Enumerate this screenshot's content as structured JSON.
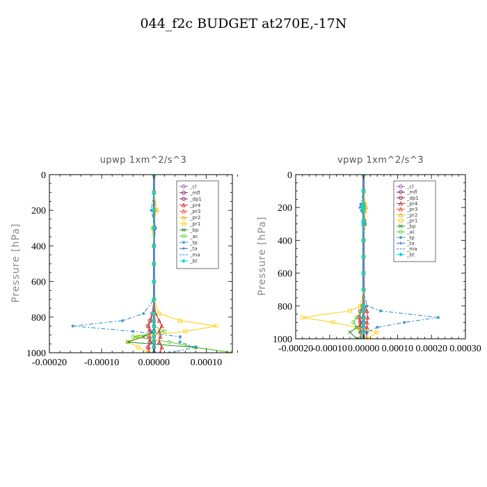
{
  "figure": {
    "title": "044_f2c  BUDGET at270E,-17N"
  },
  "chart_data": [
    {
      "type": "line",
      "title": "upwp   1xm^2/s^3",
      "ylabel": "Pressure [hPa]",
      "xlabel": "",
      "xlim": [
        -0.0002,
        0.00015
      ],
      "ylim": [
        1000,
        0
      ],
      "x_ticks": [
        -0.0002,
        -0.0001,
        0.0,
        0.0001
      ],
      "x_tick_labels": [
        "-0.00020",
        "-0.00010",
        "0.00000",
        "0.00010"
      ],
      "y_ticks": [
        0,
        200,
        400,
        600,
        800,
        1000
      ],
      "y_tick_labels": [
        "0",
        "200",
        "400",
        "600",
        "800",
        "1000"
      ],
      "legend_position": "top-right",
      "y": [
        0,
        100,
        200,
        300,
        400,
        500,
        600,
        700,
        780,
        820,
        850,
        880,
        910,
        940,
        970,
        1000
      ],
      "series": [
        {
          "name": "_cl",
          "color": "#8e5aa8",
          "marker": "circle",
          "dash": "",
          "x": [
            0,
            0,
            0,
            0,
            0,
            0,
            0,
            0,
            0,
            0,
            0,
            0,
            0,
            0,
            0,
            0
          ]
        },
        {
          "name": "_mfl",
          "color": "#7a1f6e",
          "marker": "circle",
          "dash": "",
          "x": [
            0,
            0,
            0,
            0,
            0,
            0,
            0,
            0,
            0,
            0,
            0,
            0,
            0,
            0,
            0,
            0
          ]
        },
        {
          "name": "_dp1",
          "color": "#8b2252",
          "marker": "circle",
          "dash": "",
          "x": [
            0,
            0,
            0,
            0,
            0,
            0,
            0,
            0,
            -3e-06,
            -8e-06,
            -1.2e-05,
            -8e-06,
            -1e-05,
            -8e-06,
            -1.2e-05,
            -1e-05
          ]
        },
        {
          "name": "_pr4",
          "color": "#d62b2b",
          "marker": "triangle",
          "dash": "",
          "x": [
            0,
            0,
            0,
            0,
            0,
            0,
            0,
            0,
            3e-06,
            1e-05,
            1.5e-05,
            1e-05,
            1.2e-05,
            1e-05,
            1.5e-05,
            1.2e-05
          ]
        },
        {
          "name": "_pr3",
          "color": "#e8483e",
          "marker": "triangle",
          "dash": "",
          "x": [
            0,
            0,
            0,
            0,
            0,
            0,
            0,
            0,
            -2e-06,
            -6e-06,
            -1e-05,
            -6e-06,
            -8e-06,
            -6e-06,
            -1e-05,
            -8e-06
          ]
        },
        {
          "name": "_pr2",
          "color": "#f0b020",
          "marker": "triangle",
          "dash": "",
          "x": [
            0,
            0,
            5e-06,
            -3e-06,
            0,
            0,
            0,
            0,
            0,
            0,
            0,
            0,
            0,
            0,
            0,
            0
          ]
        },
        {
          "name": "_pr1",
          "color": "#ffd21a",
          "marker": "square",
          "dash": "",
          "x": [
            0,
            0,
            5e-06,
            -2e-06,
            0,
            0,
            0,
            0,
            1e-05,
            5e-05,
            0.00012,
            6e-05,
            -3e-05,
            -5e-05,
            -3e-05,
            -1e-05
          ]
        },
        {
          "name": "_bp",
          "color": "#2e8b2e",
          "marker": "x",
          "dash": "",
          "x": [
            0,
            0,
            0,
            0,
            0,
            0,
            0,
            0,
            0,
            0,
            0,
            0,
            -2e-05,
            -5e-05,
            8e-05,
            0.00015
          ]
        },
        {
          "name": "_ac",
          "color": "#66cc33",
          "marker": "circle",
          "dash": "",
          "x": [
            0,
            0,
            0,
            0,
            0,
            0,
            0,
            0,
            0,
            0,
            0,
            2e-05,
            -4e-05,
            3e-05,
            8e-05,
            0.00015
          ]
        },
        {
          "name": "_tp",
          "color": "#2b8fc9",
          "marker": "star",
          "dash": "6,3,2,3",
          "x": [
            0,
            0,
            -5e-06,
            3e-06,
            0,
            0,
            0,
            0,
            -2e-05,
            -6e-05,
            -0.000155,
            -4e-05,
            5e-05,
            5e-05,
            8e-05,
            3e-05
          ]
        },
        {
          "name": "_ta",
          "color": "#3a5fcd",
          "marker": "plus",
          "dash": "",
          "x": [
            0,
            0,
            0,
            2e-06,
            0,
            0,
            0,
            0,
            0,
            0,
            0,
            0,
            0,
            0,
            0,
            0
          ]
        },
        {
          "name": "_ma",
          "color": "#1e90c8",
          "marker": "none",
          "dash": "6,3",
          "x": [
            0,
            0,
            0,
            0,
            0,
            0,
            0,
            0,
            0,
            0,
            0,
            0,
            0,
            0,
            0,
            0
          ]
        },
        {
          "name": "_bt",
          "color": "#00d8e8",
          "marker": "diamond",
          "dash": "",
          "x": [
            0,
            0,
            0,
            0,
            0,
            0,
            0,
            0,
            0,
            0,
            0,
            0,
            0,
            0,
            0,
            0
          ]
        }
      ]
    },
    {
      "type": "line",
      "title": "vpwp   1xm^2/s^3",
      "ylabel": "Pressure [hPa]",
      "xlabel": "",
      "xlim": [
        -0.0002,
        0.0003
      ],
      "ylim": [
        1000,
        0
      ],
      "x_ticks": [
        -0.0002,
        -0.0001,
        0.0,
        0.0001,
        0.0002,
        0.0003
      ],
      "x_tick_labels": [
        "-0.00020",
        "-0.00010",
        "0.00000",
        "0.00010",
        "0.00020",
        "0.00030"
      ],
      "y_ticks": [
        0,
        200,
        400,
        600,
        800,
        1000
      ],
      "y_tick_labels": [
        "0",
        "200",
        "400",
        "600",
        "800",
        "1000"
      ],
      "legend_position": "top-right",
      "y": [
        0,
        100,
        180,
        200,
        220,
        280,
        300,
        400,
        500,
        600,
        700,
        800,
        830,
        870,
        900,
        930,
        960,
        1000
      ],
      "series": [
        {
          "name": "_cl",
          "color": "#8e5aa8",
          "marker": "circle",
          "dash": "",
          "x": [
            0,
            0,
            0,
            0,
            0,
            0,
            0,
            0,
            0,
            0,
            0,
            0,
            0,
            0,
            0,
            0,
            0,
            0
          ]
        },
        {
          "name": "_mfl",
          "color": "#7a1f6e",
          "marker": "circle",
          "dash": "",
          "x": [
            0,
            0,
            0,
            0,
            0,
            0,
            0,
            0,
            0,
            0,
            0,
            0,
            0,
            0,
            0,
            0,
            0,
            0
          ]
        },
        {
          "name": "_dp1",
          "color": "#8b2252",
          "marker": "circle",
          "dash": "",
          "x": [
            0,
            0,
            0,
            0,
            0,
            0,
            0,
            0,
            0,
            0,
            0,
            -3e-06,
            -1e-05,
            -1.5e-05,
            -1e-05,
            -1.2e-05,
            -8e-06,
            -1e-05
          ]
        },
        {
          "name": "_pr4",
          "color": "#d62b2b",
          "marker": "triangle",
          "dash": "",
          "x": [
            0,
            0,
            0,
            0,
            0,
            0,
            0,
            0,
            0,
            0,
            0,
            3e-06,
            1e-05,
            1.2e-05,
            1e-05,
            1e-05,
            8e-06,
            1e-05
          ]
        },
        {
          "name": "_pr3",
          "color": "#e8483e",
          "marker": "triangle",
          "dash": "",
          "x": [
            0,
            0,
            0,
            0,
            0,
            0,
            0,
            0,
            0,
            0,
            0,
            -2e-06,
            -8e-06,
            -1e-05,
            -8e-06,
            -8e-06,
            -6e-06,
            -8e-06
          ]
        },
        {
          "name": "_pr2",
          "color": "#f0b020",
          "marker": "triangle",
          "dash": "",
          "x": [
            0,
            0,
            5e-06,
            8e-06,
            5e-06,
            3e-06,
            4e-06,
            0,
            0,
            0,
            0,
            0,
            0,
            0,
            0,
            0,
            0,
            0
          ]
        },
        {
          "name": "_pr1",
          "color": "#ffd21a",
          "marker": "square",
          "dash": "",
          "x": [
            0,
            0,
            3e-06,
            4e-06,
            2e-06,
            3e-06,
            2e-06,
            0,
            0,
            0,
            0,
            -1e-05,
            -4e-05,
            -0.00018,
            -9e-05,
            -2e-05,
            4e-05,
            1e-05
          ]
        },
        {
          "name": "_bp",
          "color": "#2e8b2e",
          "marker": "x",
          "dash": "",
          "x": [
            0,
            0,
            0,
            0,
            0,
            0,
            0,
            0,
            0,
            0,
            0,
            0,
            0,
            0,
            0,
            -2e-05,
            -4e-05,
            -2e-05
          ]
        },
        {
          "name": "_ac",
          "color": "#66cc33",
          "marker": "circle",
          "dash": "",
          "x": [
            0,
            0,
            0,
            0,
            0,
            0,
            0,
            0,
            0,
            0,
            0,
            0,
            -5e-06,
            -2e-05,
            -3e-05,
            -2e-05,
            -1e-05,
            -5e-06
          ]
        },
        {
          "name": "_tp",
          "color": "#2b8fc9",
          "marker": "star",
          "dash": "6,3,2,3",
          "x": [
            0,
            0,
            -8e-06,
            -1e-05,
            -6e-06,
            3e-06,
            5e-06,
            0,
            0,
            0,
            0,
            1e-05,
            5e-05,
            0.00022,
            0.00012,
            4e-05,
            1e-05,
            0
          ]
        },
        {
          "name": "_ta",
          "color": "#3a5fcd",
          "marker": "plus",
          "dash": "",
          "x": [
            0,
            0,
            0,
            0,
            0,
            2e-06,
            0,
            0,
            0,
            0,
            0,
            0,
            0,
            0,
            0,
            0,
            0,
            0
          ]
        },
        {
          "name": "_ma",
          "color": "#1e90c8",
          "marker": "none",
          "dash": "6,3",
          "x": [
            0,
            0,
            0,
            0,
            0,
            0,
            0,
            0,
            0,
            0,
            0,
            0,
            0,
            0,
            0,
            0,
            0,
            0
          ]
        },
        {
          "name": "_bt",
          "color": "#00d8e8",
          "marker": "diamond",
          "dash": "",
          "x": [
            0,
            0,
            0,
            0,
            0,
            0,
            0,
            0,
            0,
            0,
            0,
            0,
            0,
            0,
            0,
            0,
            0,
            0
          ]
        }
      ]
    }
  ]
}
